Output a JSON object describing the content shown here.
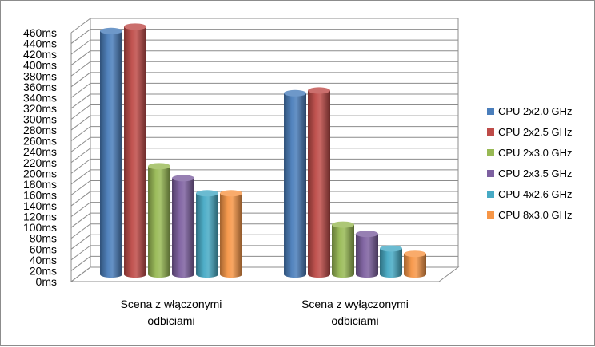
{
  "chart_data": {
    "type": "bar",
    "title": "",
    "xlabel": "",
    "ylabel": "",
    "y_unit_suffix": "ms",
    "ylim": [
      0,
      460
    ],
    "ytick_step": 20,
    "grid": true,
    "legend_position": "right",
    "categories": [
      [
        "Scena z włączonymi",
        "odbiciami"
      ],
      [
        "Scena z wyłączonymi",
        "odbiciami"
      ]
    ],
    "series": [
      {
        "name": "CPU 2x2.0 GHz",
        "color": "#4a7ebb",
        "values": [
          450,
          335
        ]
      },
      {
        "name": "CPU 2x2.5 GHz",
        "color": "#be4b48",
        "values": [
          458,
          340
        ]
      },
      {
        "name": "CPU 2x3.0 GHz",
        "color": "#98b954",
        "values": [
          200,
          92
        ]
      },
      {
        "name": "CPU 2x3.5 GHz",
        "color": "#7d60a0",
        "values": [
          178,
          75
        ]
      },
      {
        "name": "CPU 4x2.6 GHz",
        "color": "#46aac5",
        "values": [
          150,
          48
        ]
      },
      {
        "name": "CPU 8x3.0 GHz",
        "color": "#f79646",
        "values": [
          150,
          38
        ]
      }
    ]
  }
}
